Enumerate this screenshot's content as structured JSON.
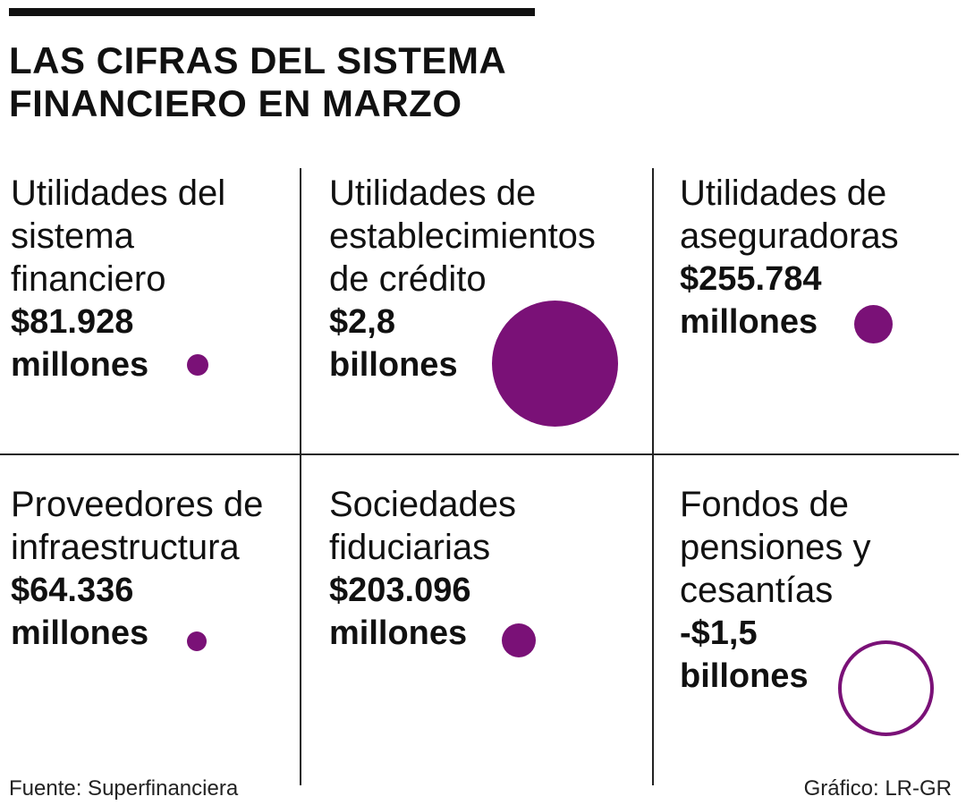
{
  "title": {
    "line1": "LAS CIFRAS DEL SISTEMA",
    "line2": "FINANCIERO EN MARZO"
  },
  "accent_color": "#7a1177",
  "cells": [
    {
      "label": [
        "Utilidades del",
        "sistema",
        "financiero"
      ],
      "value": [
        "$81.928",
        "millones"
      ],
      "sign": "positive"
    },
    {
      "label": [
        "Utilidades de",
        "establecimientos",
        "de crédito"
      ],
      "value": [
        "$2,8",
        "billones"
      ],
      "sign": "positive"
    },
    {
      "label": [
        "Utilidades de",
        "aseguradoras"
      ],
      "value": [
        "$255.784",
        "millones"
      ],
      "sign": "positive"
    },
    {
      "label": [
        "Proveedores de",
        "infraestructura"
      ],
      "value": [
        "$64.336",
        "millones"
      ],
      "sign": "positive"
    },
    {
      "label": [
        "Sociedades",
        "fiduciarias"
      ],
      "value": [
        "$203.096",
        "millones"
      ],
      "sign": "positive"
    },
    {
      "label": [
        "Fondos de",
        "pensiones y",
        "cesantías"
      ],
      "value": [
        "-$1,5",
        "billones"
      ],
      "sign": "negative"
    }
  ],
  "footer": {
    "source": "Fuente: Superfinanciera",
    "credit": "Gráfico: LR-GR"
  }
}
